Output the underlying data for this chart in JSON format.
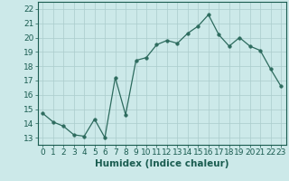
{
  "x": [
    0,
    1,
    2,
    3,
    4,
    5,
    6,
    7,
    8,
    9,
    10,
    11,
    12,
    13,
    14,
    15,
    16,
    17,
    18,
    19,
    20,
    21,
    22,
    23
  ],
  "y": [
    14.7,
    14.1,
    13.8,
    13.2,
    13.1,
    14.3,
    13.0,
    17.2,
    14.6,
    18.4,
    18.6,
    19.5,
    19.8,
    19.6,
    20.3,
    20.8,
    21.6,
    20.2,
    19.4,
    20.0,
    19.4,
    19.1,
    17.8,
    16.6
  ],
  "xlabel": "Humidex (Indice chaleur)",
  "xlim": [
    -0.5,
    23.5
  ],
  "ylim": [
    12.5,
    22.5
  ],
  "yticks": [
    13,
    14,
    15,
    16,
    17,
    18,
    19,
    20,
    21,
    22
  ],
  "xticks": [
    0,
    1,
    2,
    3,
    4,
    5,
    6,
    7,
    8,
    9,
    10,
    11,
    12,
    13,
    14,
    15,
    16,
    17,
    18,
    19,
    20,
    21,
    22,
    23
  ],
  "line_color": "#2d6b5e",
  "marker_size": 2.5,
  "bg_color": "#cce9e9",
  "grid_color": "#aacccc",
  "label_color": "#1a5c50",
  "font_size_xlabel": 7.5,
  "font_size_tick": 6.5
}
